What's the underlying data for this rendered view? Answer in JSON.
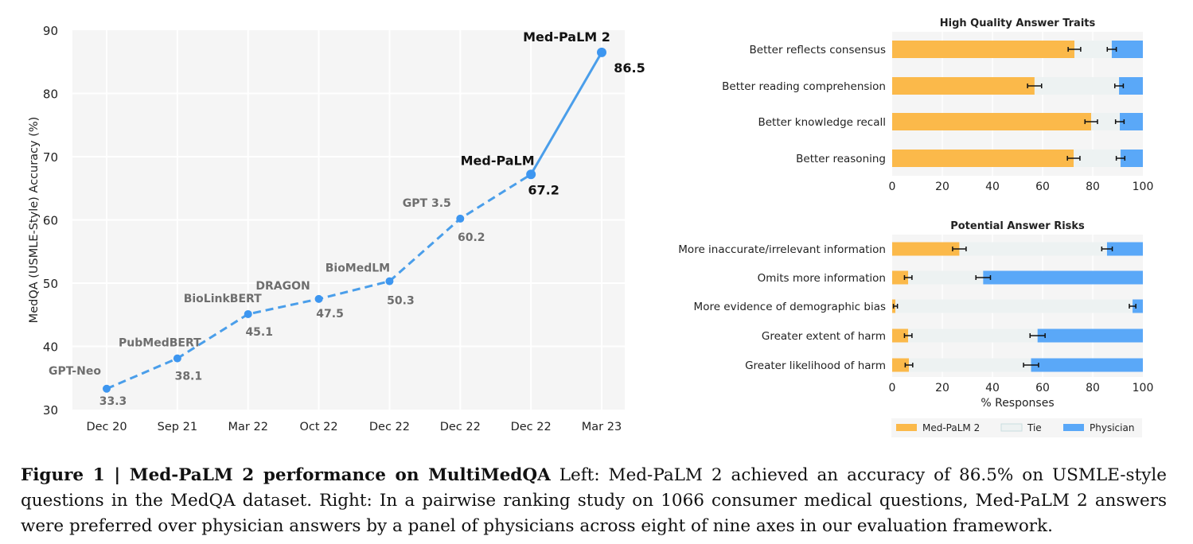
{
  "chart_data": [
    {
      "type": "line",
      "title": "",
      "xlabel": "",
      "ylabel": "MedQA (USMLE-Style) Accuracy (%)",
      "ylim": [
        30,
        90
      ],
      "yticks": [
        30,
        40,
        50,
        60,
        70,
        80,
        90
      ],
      "grid": true,
      "categories": [
        "Dec 20",
        "Sep 21",
        "Mar 22",
        "Oct 22",
        "Dec 22",
        "Dec 22",
        "Dec 22",
        "Mar 23"
      ],
      "points": [
        {
          "model": "GPT-Neo",
          "x_index": 0,
          "value": 33.3,
          "value_label": "33.3",
          "highlight": false
        },
        {
          "model": "PubMedBERT",
          "x_index": 1,
          "value": 38.1,
          "value_label": "38.1",
          "highlight": false
        },
        {
          "model": "BioLinkBERT",
          "x_index": 2,
          "value": 45.1,
          "value_label": "45.1",
          "highlight": false
        },
        {
          "model": "DRAGON",
          "x_index": 3,
          "value": 47.5,
          "value_label": "47.5",
          "highlight": false
        },
        {
          "model": "BioMedLM",
          "x_index": 4,
          "value": 50.3,
          "value_label": "50.3",
          "highlight": false
        },
        {
          "model": "GPT 3.5",
          "x_index": 5,
          "value": 60.2,
          "value_label": "60.2",
          "highlight": false
        },
        {
          "model": "Med-PaLM",
          "x_index": 6,
          "value": 67.2,
          "value_label": "67.2",
          "highlight": true
        },
        {
          "model": "Med-PaLM 2",
          "x_index": 7,
          "value": 86.5,
          "value_label": "86.5",
          "highlight": true
        }
      ],
      "line_style": {
        "dashed_until_index": 6,
        "solid_from_index": 6
      },
      "colors": {
        "line": "#4a9eea",
        "marker": "#3d96f0",
        "muted_label": "#6e6e6e",
        "highlight_label": "#111111",
        "plot_bg": "#f5f5f5",
        "grid": "#ffffff"
      }
    },
    {
      "type": "bar",
      "orientation": "horizontal-stacked",
      "title": "High Quality Answer Traits",
      "xlabel": "",
      "xlim": [
        0,
        100
      ],
      "xticks": [
        0,
        20,
        40,
        60,
        80,
        100
      ],
      "categories": [
        "Better reflects consensus",
        "Better reading comprehension",
        "Better knowledge recall",
        "Better reasoning"
      ],
      "series": [
        {
          "name": "Med-PaLM 2",
          "values": [
            72.7,
            56.8,
            79.4,
            72.4
          ],
          "error": [
            2.5,
            2.8,
            2.5,
            2.5
          ]
        },
        {
          "name": "Tie",
          "values": [
            14.9,
            33.7,
            11.4,
            18.7
          ]
        },
        {
          "name": "Physician",
          "values": [
            12.4,
            9.5,
            9.2,
            8.9
          ],
          "error": [
            1.8,
            1.7,
            1.7,
            1.7
          ]
        }
      ]
    },
    {
      "type": "bar",
      "orientation": "horizontal-stacked",
      "title": "Potential Answer Risks",
      "xlabel": "% Responses",
      "xlim": [
        0,
        100
      ],
      "xticks": [
        0,
        20,
        40,
        60,
        80,
        100
      ],
      "categories": [
        "More inaccurate/irrelevant information",
        "Omits more information",
        "More evidence of demographic bias",
        "Greater extent of harm",
        "Greater likelihood of harm"
      ],
      "series": [
        {
          "name": "Med-PaLM 2",
          "values": [
            26.8,
            6.4,
            1.3,
            6.4,
            6.7
          ],
          "error": [
            2.7,
            1.5,
            0.8,
            1.5,
            1.5
          ]
        },
        {
          "name": "Tie",
          "values": [
            58.9,
            29.9,
            94.6,
            51.6,
            48.7
          ]
        },
        {
          "name": "Physician",
          "values": [
            14.3,
            63.7,
            4.1,
            42.0,
            44.6
          ],
          "error": [
            2.1,
            2.9,
            1.3,
            3.0,
            3.0
          ]
        }
      ],
      "legend": {
        "placement": "bottom",
        "entries": [
          "Med-PaLM 2",
          "Tie",
          "Physician"
        ]
      }
    }
  ],
  "colors": {
    "medpalm2": "#fbb94a",
    "tie": "#edf2f2",
    "physician": "#5aa8f8",
    "plot_bg": "#f5f5f5",
    "text": "#222222"
  },
  "caption": {
    "label": "Figure 1 | Med-PaLM 2 performance on MultiMedQA",
    "text": " Left: Med-PaLM 2 achieved an accuracy of 86.5% on USMLE-style questions in the MedQA dataset. Right: In a pairwise ranking study on 1066 consumer medical questions, Med-PaLM 2 answers were preferred over physician answers by a panel of physicians across eight of nine axes in our evaluation framework."
  }
}
